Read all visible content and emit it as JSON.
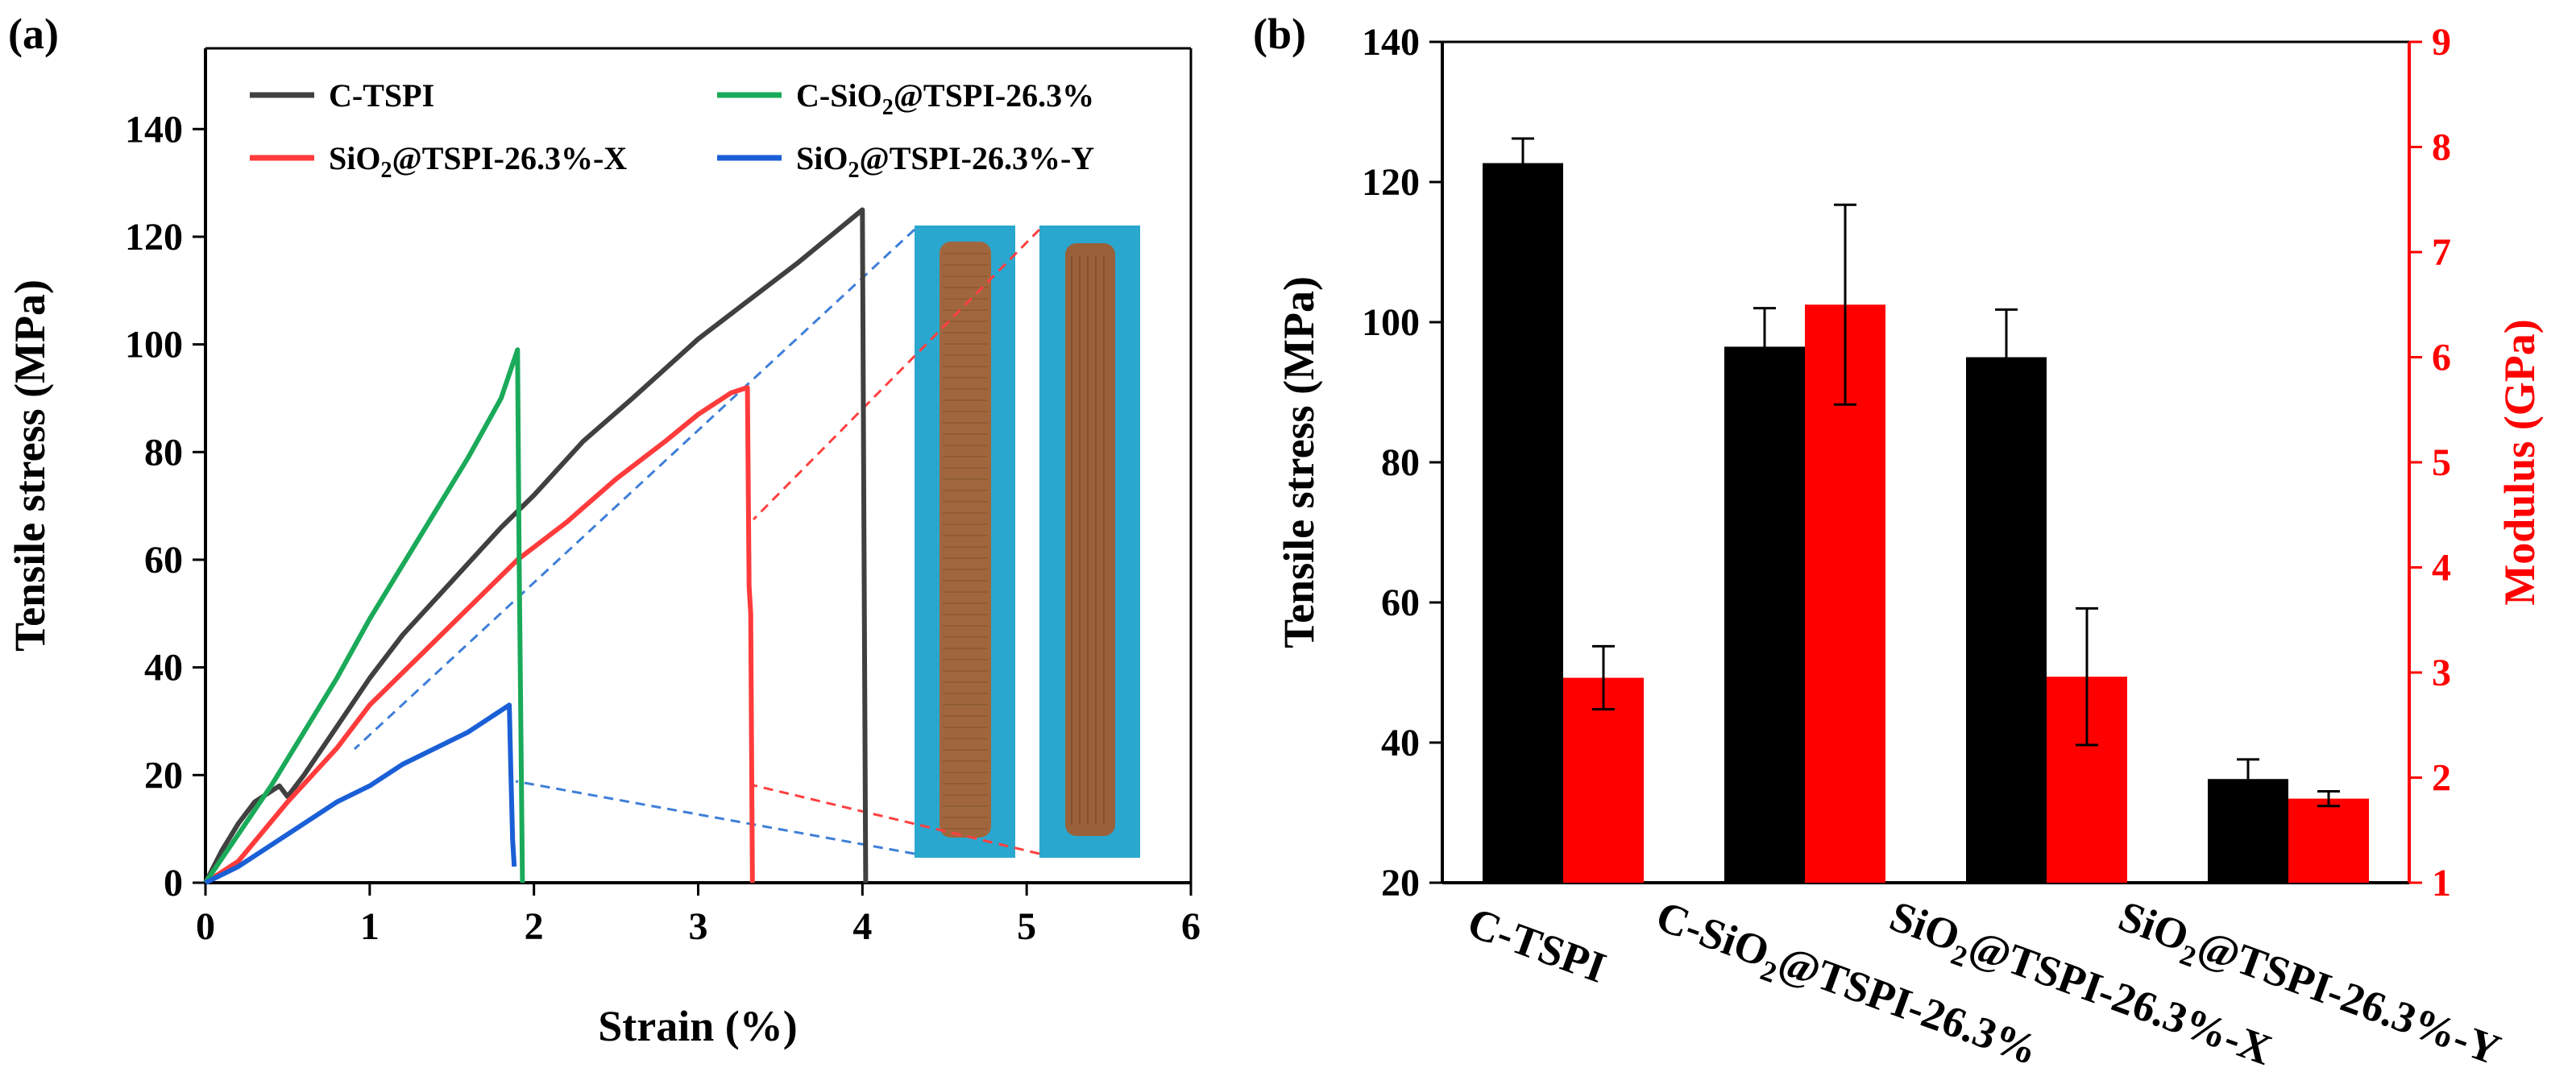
{
  "chart_data": [
    {
      "type": "line",
      "panel_label": "(a)",
      "xlabel": "Strain (%)",
      "ylabel": "Tensile stress (MPa)",
      "xlim": [
        0,
        6
      ],
      "ylim": [
        0,
        155
      ],
      "x_ticks": [
        0,
        1,
        2,
        3,
        4,
        5,
        6
      ],
      "y_ticks": [
        0,
        20,
        40,
        60,
        80,
        100,
        120,
        140
      ],
      "grid": false,
      "legend_position": "top",
      "series": [
        {
          "name": "C-TSPI",
          "name_parts": {
            "pre": "C-TSPI",
            "sub": "",
            "post": ""
          },
          "color": "#404040",
          "x": [
            0,
            0.1,
            0.2,
            0.3,
            0.4,
            0.45,
            0.5,
            0.6,
            0.8,
            1.0,
            1.2,
            1.5,
            1.8,
            2.0,
            2.3,
            2.6,
            3.0,
            3.3,
            3.6,
            3.8,
            4.0,
            4.01,
            4.02
          ],
          "y": [
            0,
            6,
            11,
            15,
            17,
            18,
            16,
            20,
            29,
            38,
            46,
            56,
            66,
            72,
            82,
            90,
            101,
            108,
            115,
            120,
            125,
            60,
            0
          ]
        },
        {
          "name": "SiO2@TSPI-26.3%-X",
          "name_parts": {
            "pre": "SiO",
            "sub": "2",
            "post": "@TSPI-26.3%-X"
          },
          "color": "#ff3b3b",
          "x": [
            0,
            0.2,
            0.5,
            0.8,
            1.0,
            1.3,
            1.6,
            1.9,
            2.2,
            2.5,
            2.8,
            3.0,
            3.2,
            3.3,
            3.31,
            3.32,
            3.33
          ],
          "y": [
            0,
            4,
            15,
            25,
            33,
            42,
            51,
            60,
            67,
            75,
            82,
            87,
            91,
            92,
            55,
            50,
            0
          ]
        },
        {
          "name": "C-SiO2@TSPI-26.3%",
          "name_parts": {
            "pre": "C-SiO",
            "sub": "2",
            "post": "@TSPI-26.3%"
          },
          "color": "#1aaa5a",
          "x": [
            0,
            0.2,
            0.4,
            0.6,
            0.8,
            1.0,
            1.2,
            1.4,
            1.6,
            1.8,
            1.9,
            1.91,
            1.93
          ],
          "y": [
            0,
            9,
            18,
            28,
            38,
            49,
            59,
            69,
            79,
            90,
            99,
            60,
            0
          ]
        },
        {
          "name": "SiO2@TSPI-26.3%-Y",
          "name_parts": {
            "pre": "SiO",
            "sub": "2",
            "post": "@TSPI-26.3%-Y"
          },
          "color": "#1a5fd6",
          "x": [
            0,
            0.2,
            0.4,
            0.6,
            0.8,
            1.0,
            1.2,
            1.4,
            1.6,
            1.75,
            1.85,
            1.86,
            1.87,
            1.88
          ],
          "y": [
            0,
            3,
            7,
            11,
            15,
            18,
            22,
            25,
            28,
            31,
            33,
            20,
            8,
            3
          ]
        }
      ],
      "inset": {
        "description": "photos of two brown specimens on blue background"
      }
    },
    {
      "type": "bar",
      "panel_label": "(b)",
      "categories": [
        "C-TSPI",
        "C-SiO2@TSPI-26.3%",
        "SiO2@TSPI-26.3%-X",
        "SiO2@TSPI-26.3%-Y"
      ],
      "category_parts": [
        {
          "pre": "C-TSPI",
          "sub": "",
          "post": ""
        },
        {
          "pre": "C-SiO",
          "sub": "2",
          "post": "@TSPI-26.3%"
        },
        {
          "pre": "SiO",
          "sub": "2",
          "post": "@TSPI-26.3%-X"
        },
        {
          "pre": "SiO",
          "sub": "2",
          "post": "@TSPI-26.3%-Y"
        }
      ],
      "ylabel": "Tensile stress (MPa)",
      "y2label": "Modulus (GPa)",
      "ylim": [
        20,
        140
      ],
      "y2lim": [
        1,
        9
      ],
      "y_ticks": [
        20,
        40,
        60,
        80,
        100,
        120,
        140
      ],
      "y2_ticks": [
        1,
        2,
        3,
        4,
        5,
        6,
        7,
        8,
        9
      ],
      "grid": false,
      "series": [
        {
          "name": "Tensile stress",
          "axis": "left",
          "color": "#000000",
          "values": [
            122.7,
            96.5,
            95.0,
            34.8
          ],
          "errors": [
            3.5,
            5.5,
            6.8,
            2.8
          ]
        },
        {
          "name": "Modulus",
          "axis": "right",
          "color": "#ff0000",
          "values": [
            2.95,
            6.5,
            2.96,
            1.8
          ],
          "errors": [
            0.3,
            0.95,
            0.65,
            0.07
          ]
        }
      ]
    }
  ]
}
